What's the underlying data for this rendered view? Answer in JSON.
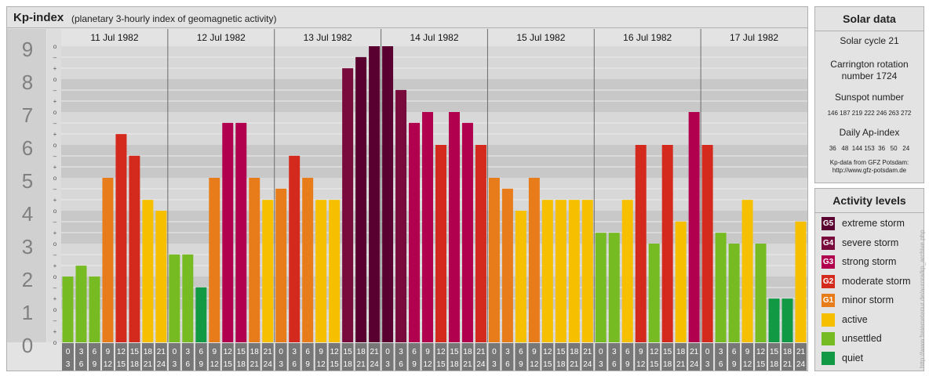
{
  "header": {
    "title": "Kp-index",
    "subtitle": "(planetary 3-hourly index of geomagnetic activity)"
  },
  "solar_data": {
    "heading": "Solar data",
    "solar_cycle": "Solar cycle 21",
    "carrington_line1": "Carrington rotation",
    "carrington_line2": "number 1724",
    "sunspot_label": "Sunspot number",
    "sunspot_values": "146 187 219 222 246 263 272",
    "ap_label": "Daily Ap-index",
    "ap_values": "36   48  144 153  36   50   24",
    "source_line1": "Kp-data from GFZ Potsdam:",
    "source_line2": "http://www.gfz-potsdam.de"
  },
  "activity_levels": {
    "heading": "Activity levels",
    "items": [
      {
        "badge": "G5",
        "label": "extreme storm",
        "color": "#5a0030"
      },
      {
        "badge": "G4",
        "label": "severe storm",
        "color": "#780a3c"
      },
      {
        "badge": "G3",
        "label": "strong storm",
        "color": "#b0004e"
      },
      {
        "badge": "G2",
        "label": "moderate storm",
        "color": "#d42a1e"
      },
      {
        "badge": "G1",
        "label": "minor storm",
        "color": "#e87c1a"
      },
      {
        "badge": "",
        "label": "active",
        "color": "#f6c000"
      },
      {
        "badge": "",
        "label": "unsettled",
        "color": "#77bb22"
      },
      {
        "badge": "",
        "label": "quiet",
        "color": "#119944"
      }
    ]
  },
  "watermark": "http://www.freiemetenur.de/aurora/kp_archive.php",
  "chart_data": {
    "type": "bar",
    "title": "Kp-index",
    "ylim": [
      0,
      9
    ],
    "y_ticks": [
      "0",
      "1",
      "2",
      "3",
      "4",
      "5",
      "6",
      "7",
      "8",
      "9"
    ],
    "minor_tick_symbols": [
      "o",
      "+",
      "–"
    ],
    "days": [
      "11 Jul 1982",
      "12 Jul 1982",
      "13 Jul 1982",
      "14 Jul 1982",
      "15 Jul 1982",
      "16 Jul 1982",
      "17 Jul 1982"
    ],
    "interval_start": [
      "0",
      "3",
      "6",
      "9",
      "12",
      "15",
      "18",
      "21"
    ],
    "interval_end": [
      "3",
      "6",
      "9",
      "12",
      "15",
      "18",
      "21",
      "24"
    ],
    "values": [
      2.0,
      2.33,
      2.0,
      5.0,
      6.33,
      5.67,
      4.33,
      4.0,
      2.67,
      2.67,
      1.67,
      5.0,
      6.67,
      6.67,
      5.0,
      4.33,
      4.67,
      5.67,
      5.0,
      4.33,
      4.33,
      8.33,
      8.67,
      9.0,
      9.0,
      7.67,
      6.67,
      7.0,
      6.0,
      7.0,
      6.67,
      6.0,
      5.0,
      4.67,
      4.0,
      5.0,
      4.33,
      4.33,
      4.33,
      4.33,
      3.33,
      3.33,
      4.33,
      6.0,
      3.0,
      6.0,
      3.67,
      7.0,
      6.0,
      3.33,
      3.0,
      4.33,
      3.0,
      1.33,
      1.33,
      3.67
    ],
    "colors": {
      "quiet": "#119944",
      "unsettled": "#77bb22",
      "active": "#f6c000",
      "G1": "#e87c1a",
      "G2": "#d42a1e",
      "G3": "#b0004e",
      "G4": "#780a3c",
      "G5": "#5a0030"
    }
  }
}
